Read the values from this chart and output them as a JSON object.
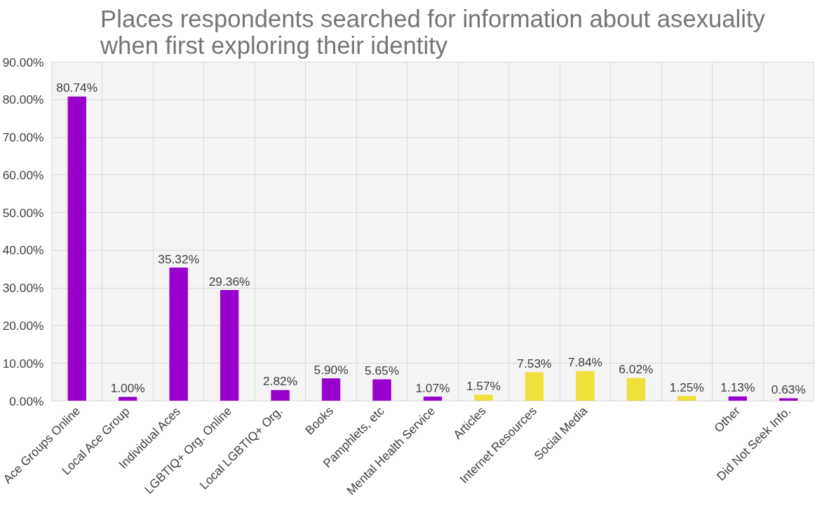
{
  "chart_data": {
    "type": "bar",
    "title": "Places respondents searched for information about asexuality when first exploring their identity",
    "categories": [
      "Ace Groups Online",
      "Local Ace Group",
      "Individual Aces",
      "LGBTIQ+ Org. Online",
      "Local LGBTIQ+ Org.",
      "Books",
      "Pamphlets, etc",
      "Mental Health Service",
      "Articles",
      "Internet Resources",
      "Social Media",
      null,
      null,
      "Other",
      "Did Not Seek Info."
    ],
    "values": [
      80.74,
      1.0,
      35.32,
      29.36,
      2.82,
      5.9,
      5.65,
      1.07,
      1.57,
      7.53,
      7.84,
      6.02,
      1.25,
      1.13,
      0.63
    ],
    "colors": [
      "#9900cc",
      "#9900cc",
      "#9900cc",
      "#9900cc",
      "#9900cc",
      "#9900cc",
      "#9900cc",
      "#9900cc",
      "#f0e03c",
      "#f0e03c",
      "#f0e03c",
      "#f0e03c",
      "#f0e03c",
      "#9900cc",
      "#9900cc"
    ],
    "value_labels": [
      "80.74%",
      "1.00%",
      "35.32%",
      "29.36%",
      "2.82%",
      "5.90%",
      "5.65%",
      "1.07%",
      "1.57%",
      "7.53%",
      "7.84%",
      "6.02%",
      "1.25%",
      "1.13%",
      "0.63%"
    ],
    "ylim": [
      0,
      90
    ],
    "yticks": [
      {
        "value": 0,
        "label": "0.00%"
      },
      {
        "value": 10,
        "label": "10.00%"
      },
      {
        "value": 20,
        "label": "20.00%"
      },
      {
        "value": 30,
        "label": "30.00%"
      },
      {
        "value": 40,
        "label": "40.00%"
      },
      {
        "value": 50,
        "label": "50.00%"
      },
      {
        "value": 60,
        "label": "60.00%"
      },
      {
        "value": 70,
        "label": "70.00%"
      },
      {
        "value": 80,
        "label": "80.00%"
      },
      {
        "value": 90,
        "label": "90.00%"
      }
    ],
    "grid": true
  }
}
